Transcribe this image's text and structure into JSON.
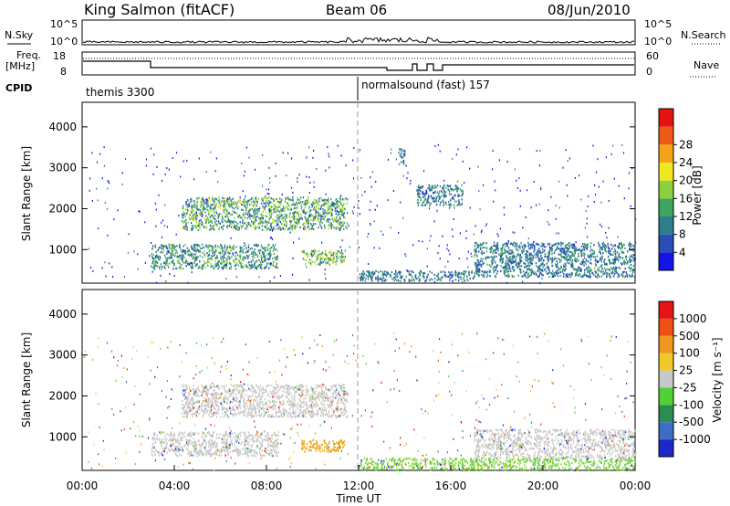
{
  "header": {
    "station": "King Salmon (fitACF)",
    "beam": "Beam 06",
    "date": "08/Jun/2010"
  },
  "noise_panel": {
    "left_label": "N.Sky",
    "left_ticks": [
      "10^5",
      "10^0"
    ],
    "right_ticks": [
      "10^5",
      "10^0"
    ],
    "right_label": "N.Search"
  },
  "freq_panel": {
    "left_label_1": "Freq.",
    "left_label_2": "[MHz]",
    "left_ticks": [
      "18",
      "8"
    ],
    "right_ticks": [
      "60",
      "0"
    ],
    "right_label": "Nave"
  },
  "cpid_panel": {
    "label": "CPID",
    "mode_1": "themis 3300",
    "mode_2": "normalsound (fast) 157"
  },
  "chart_data": [
    {
      "type": "heatmap",
      "name": "Power",
      "ylabel": "Slant Range [km]",
      "x_range_hours": [
        0,
        24
      ],
      "ylim": [
        180,
        4600
      ],
      "yticks": [
        1000,
        2000,
        3000,
        4000
      ],
      "colorbar": {
        "label": "Power [dB]",
        "ticks": [
          4,
          8,
          12,
          16,
          20,
          24,
          28
        ],
        "colors": [
          "#1414e6",
          "#2a4db8",
          "#2d7f8c",
          "#3da55f",
          "#8ecf3c",
          "#f0e81e",
          "#f5a319",
          "#ee5a18",
          "#e61410"
        ]
      },
      "blobs": [
        {
          "t": [
            4.3,
            11.5
          ],
          "r": [
            1500,
            2300
          ],
          "level": 0.45
        },
        {
          "t": [
            3.0,
            8.5
          ],
          "r": [
            550,
            1150
          ],
          "level": 0.4
        },
        {
          "t": [
            9.5,
            11.4
          ],
          "r": [
            650,
            1000
          ],
          "level": 0.5
        },
        {
          "t": [
            14.5,
            16.5
          ],
          "r": [
            2100,
            2600
          ],
          "level": 0.3
        },
        {
          "t": [
            17.0,
            24.0
          ],
          "r": [
            350,
            1200
          ],
          "level": 0.3
        },
        {
          "t": [
            12.0,
            17.0
          ],
          "r": [
            250,
            500
          ],
          "level": 0.3
        },
        {
          "t": [
            13.7,
            14.0
          ],
          "r": [
            3100,
            3500
          ],
          "level": 0.3
        }
      ]
    },
    {
      "type": "heatmap",
      "name": "Velocity",
      "ylabel": "Slant Range [km]",
      "xlabel": "Time UT",
      "x_range_hours": [
        0,
        24
      ],
      "xtick_labels": [
        "00:00",
        "04:00",
        "08:00",
        "12:00",
        "16:00",
        "20:00",
        "00:00"
      ],
      "ylim": [
        180,
        4600
      ],
      "yticks": [
        1000,
        2000,
        3000,
        4000
      ],
      "colorbar": {
        "label": "Velocity [m s⁻¹]",
        "ticks": [
          "1000",
          "500",
          "100",
          "25",
          "-25",
          "-100",
          "-500",
          "-1000"
        ],
        "colors": [
          "#1e28c8",
          "#3c6ec8",
          "#2d8c50",
          "#50d232",
          "#c8c8c8",
          "#f0c828",
          "#f0961e",
          "#f05014",
          "#e61414"
        ]
      },
      "blobs": [
        {
          "t": [
            4.3,
            11.5
          ],
          "r": [
            1500,
            2300
          ],
          "color": "#c8c8c8"
        },
        {
          "t": [
            3.0,
            8.5
          ],
          "r": [
            550,
            1150
          ],
          "color": "#c8c8c8"
        },
        {
          "t": [
            9.5,
            11.4
          ],
          "r": [
            650,
            950
          ],
          "color": "#f0a514"
        },
        {
          "t": [
            17.0,
            24.0
          ],
          "r": [
            500,
            1200
          ],
          "color": "#c8c8c8"
        },
        {
          "t": [
            12.0,
            24.0
          ],
          "r": [
            200,
            500
          ],
          "color": "#78d23c"
        }
      ]
    }
  ]
}
